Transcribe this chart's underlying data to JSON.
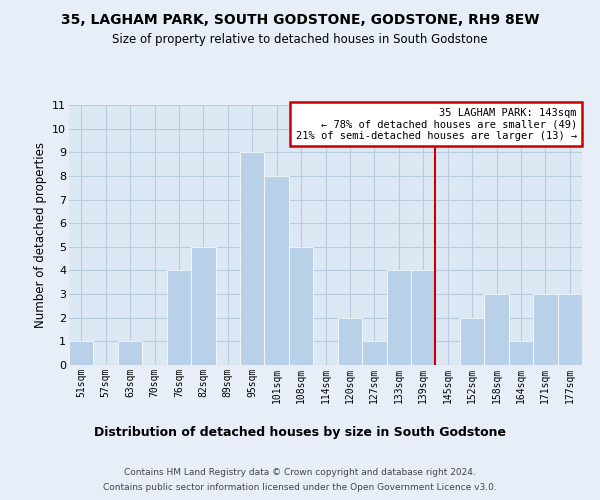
{
  "title": "35, LAGHAM PARK, SOUTH GODSTONE, GODSTONE, RH9 8EW",
  "subtitle": "Size of property relative to detached houses in South Godstone",
  "xlabel": "Distribution of detached houses by size in South Godstone",
  "ylabel": "Number of detached properties",
  "categories": [
    "51sqm",
    "57sqm",
    "63sqm",
    "70sqm",
    "76sqm",
    "82sqm",
    "89sqm",
    "95sqm",
    "101sqm",
    "108sqm",
    "114sqm",
    "120sqm",
    "127sqm",
    "133sqm",
    "139sqm",
    "145sqm",
    "152sqm",
    "158sqm",
    "164sqm",
    "171sqm",
    "177sqm"
  ],
  "values": [
    1,
    0,
    1,
    0,
    4,
    5,
    0,
    9,
    8,
    5,
    0,
    2,
    1,
    4,
    4,
    0,
    2,
    3,
    1,
    3,
    3
  ],
  "bar_color": "#b8d0e8",
  "highlight_color": "#cc0000",
  "red_line_index": 14,
  "ylim": [
    0,
    11
  ],
  "yticks": [
    0,
    1,
    2,
    3,
    4,
    5,
    6,
    7,
    8,
    9,
    10,
    11
  ],
  "annotation_title": "35 LAGHAM PARK: 143sqm",
  "annotation_line1": "← 78% of detached houses are smaller (49)",
  "annotation_line2": "21% of semi-detached houses are larger (13) →",
  "footer_line1": "Contains HM Land Registry data © Crown copyright and database right 2024.",
  "footer_line2": "Contains public sector information licensed under the Open Government Licence v3.0.",
  "bg_color": "#e8eef8",
  "plot_bg_color": "#dce8f4",
  "grid_color": "#b8cce0"
}
